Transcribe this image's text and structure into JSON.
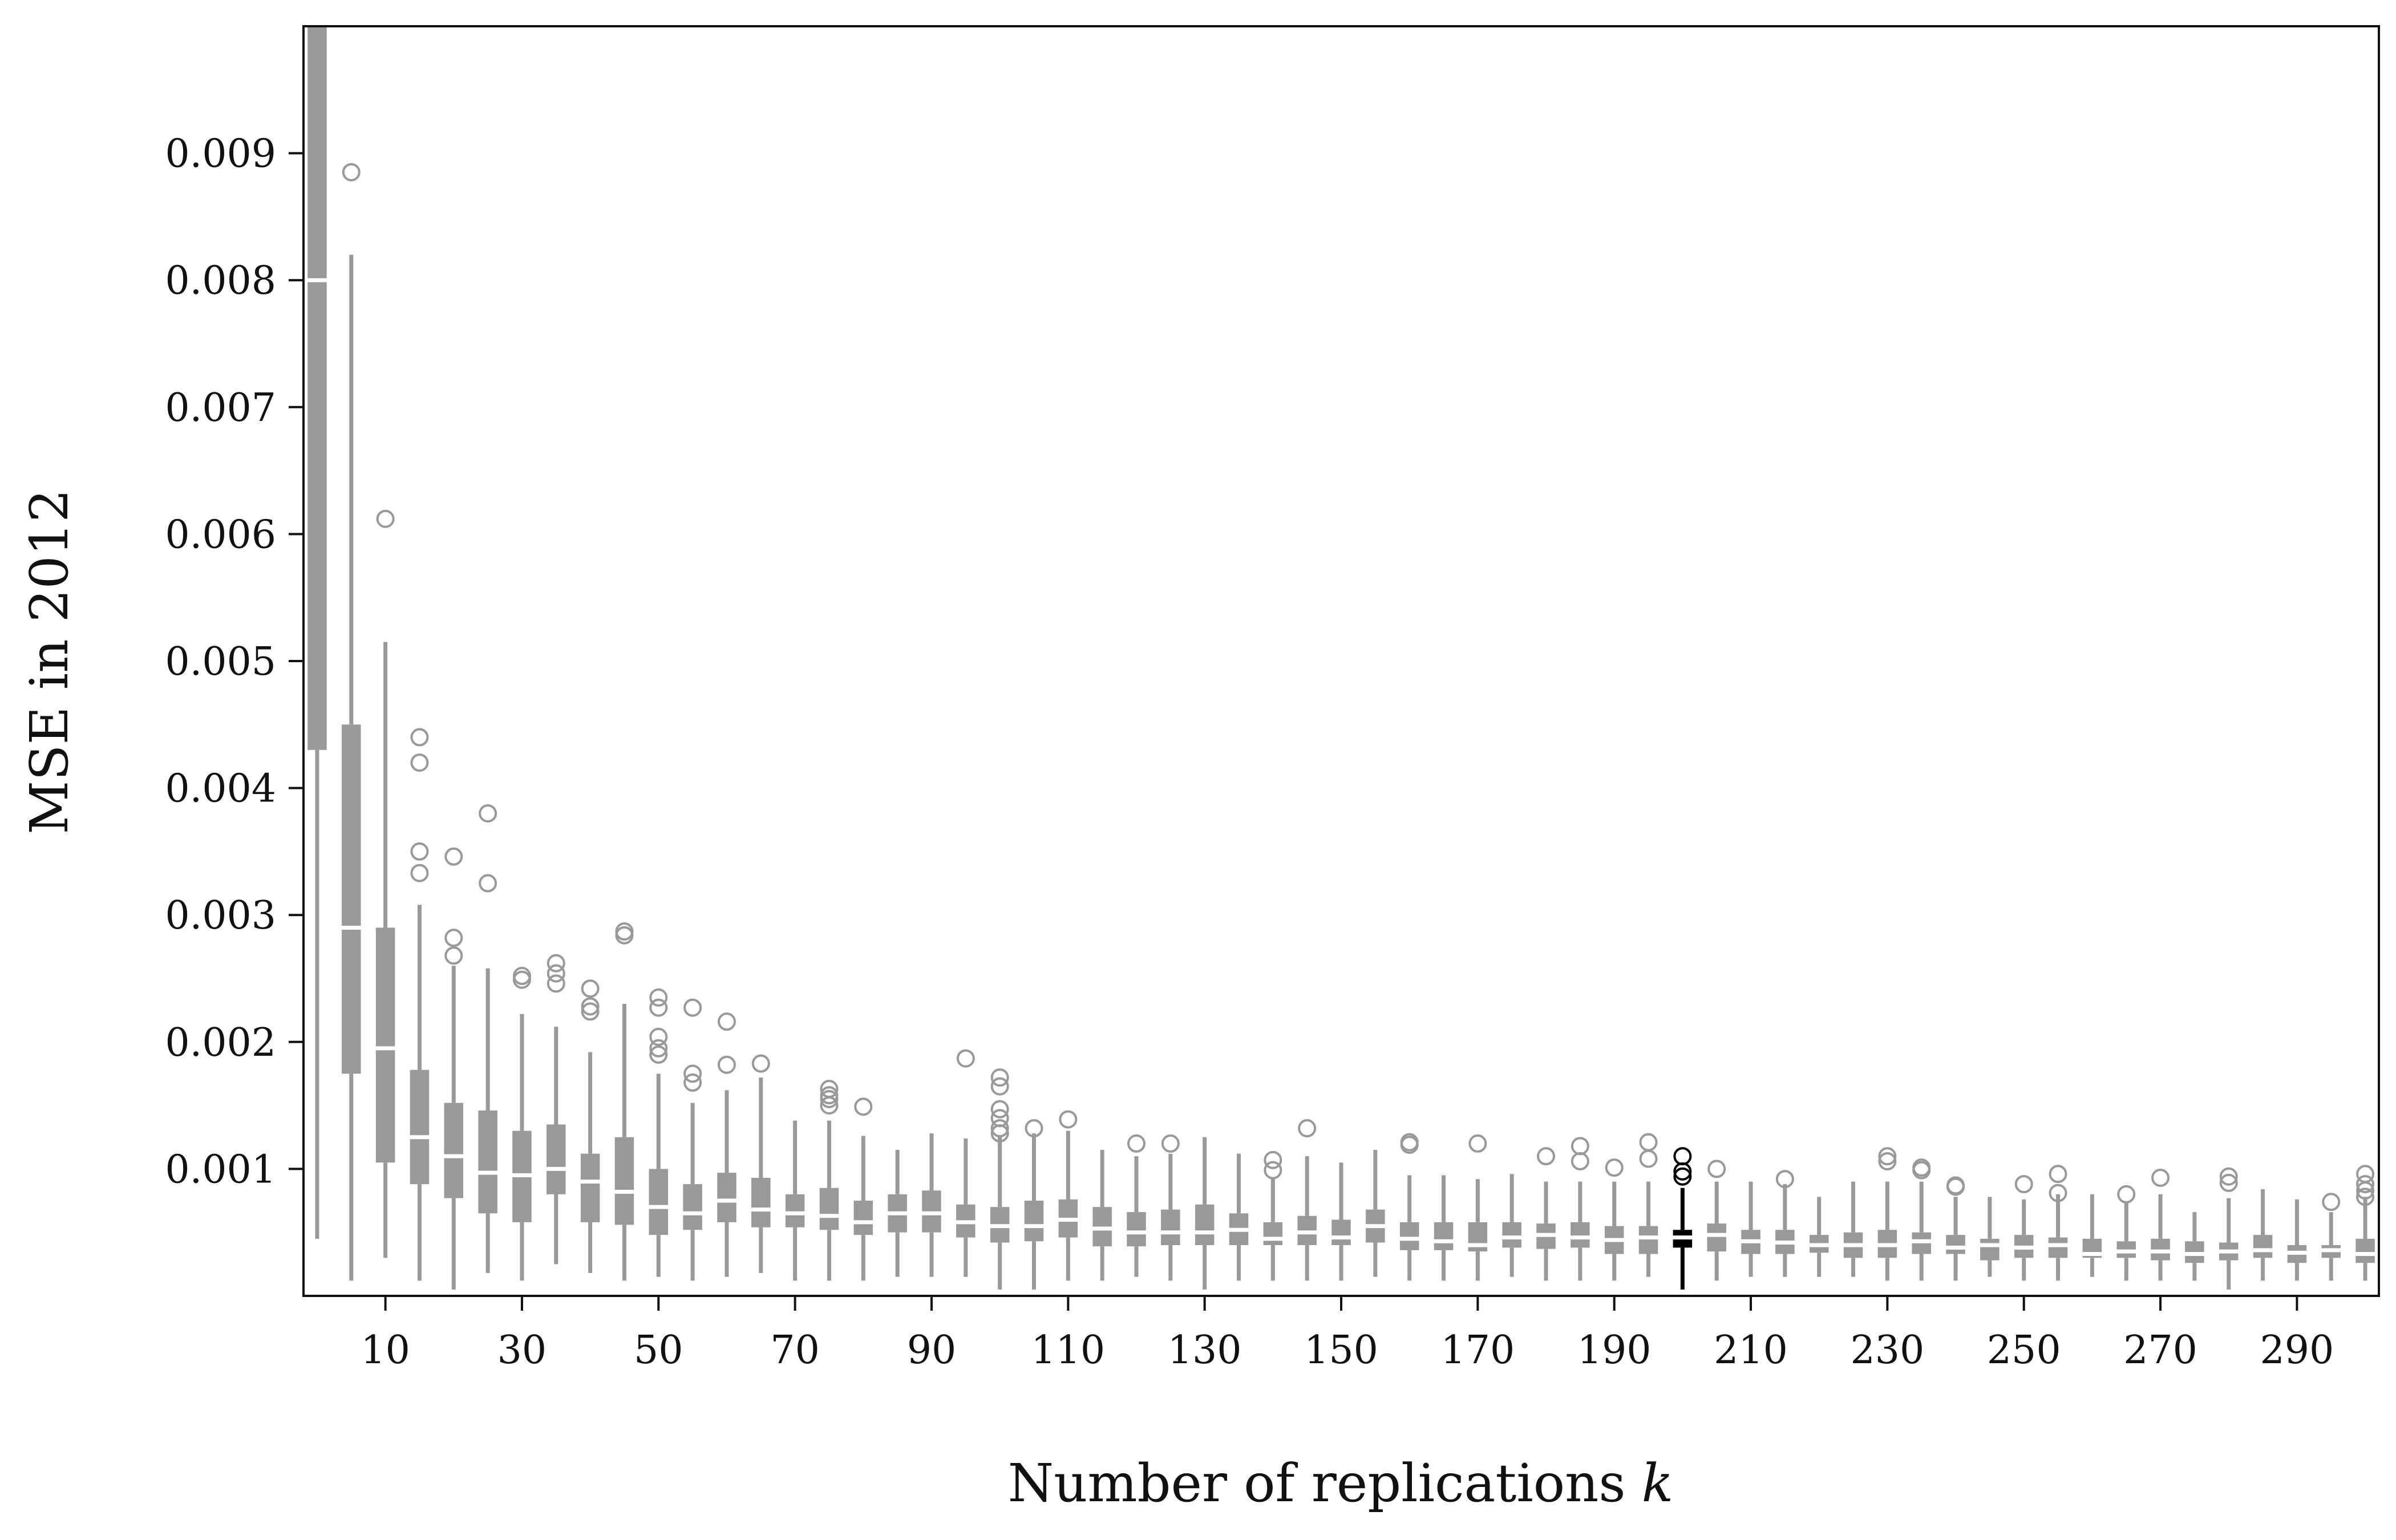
{
  "chart_data": {
    "type": "box",
    "xlabel": "Number of replications",
    "xlabel_var": "k",
    "ylabel": "MSE in 2012",
    "xlim": [
      -2,
      302
    ],
    "ylim": [
      0.0,
      0.01
    ],
    "x_ticks": [
      10,
      30,
      50,
      70,
      90,
      110,
      130,
      150,
      170,
      190,
      210,
      230,
      250,
      270,
      290
    ],
    "x_tick_labels": [
      "10",
      "30",
      "50",
      "70",
      "90",
      "110",
      "130",
      "150",
      "170",
      "190",
      "210",
      "230",
      "250",
      "270",
      "290"
    ],
    "y_ticks": [
      0.001,
      0.002,
      0.003,
      0.004,
      0.005,
      0.006,
      0.007,
      0.008,
      0.009
    ],
    "y_tick_labels": [
      "0.001",
      "0.002",
      "0.003",
      "0.004",
      "0.005",
      "0.006",
      "0.007",
      "0.008",
      "0.009"
    ],
    "grid": false,
    "colors": {
      "box": "#999999",
      "highlight": "#000000",
      "median_gap": "#ffffff",
      "outlier": "#999999",
      "axis": "#111111"
    },
    "highlight_k": 200,
    "boxes": [
      {
        "k": 0,
        "low": 0.00045,
        "q1": 0.0043,
        "median": 0.008,
        "q3": 0.0105,
        "high": 0.0105,
        "outliers": []
      },
      {
        "k": 5,
        "low": 0.00012,
        "q1": 0.00175,
        "median": 0.0029,
        "q3": 0.0045,
        "high": 0.0082,
        "outliers": [
          0.00885
        ]
      },
      {
        "k": 10,
        "low": 0.0003,
        "q1": 0.00105,
        "median": 0.00195,
        "q3": 0.0029,
        "high": 0.00515,
        "outliers": [
          0.00612
        ]
      },
      {
        "k": 15,
        "low": 0.00012,
        "q1": 0.00088,
        "median": 0.00125,
        "q3": 0.00178,
        "high": 0.00308,
        "outliers": [
          0.0044,
          0.0042,
          0.0035,
          0.00333
        ]
      },
      {
        "k": 20,
        "low": 5e-05,
        "q1": 0.00077,
        "median": 0.0011,
        "q3": 0.00152,
        "high": 0.0026,
        "outliers": [
          0.00346,
          0.00282,
          0.00268
        ]
      },
      {
        "k": 25,
        "low": 0.00018,
        "q1": 0.00065,
        "median": 0.00097,
        "q3": 0.00146,
        "high": 0.00258,
        "outliers": [
          0.0038,
          0.00325
        ]
      },
      {
        "k": 30,
        "low": 0.00012,
        "q1": 0.00058,
        "median": 0.00095,
        "q3": 0.0013,
        "high": 0.00222,
        "outliers": [
          0.00252,
          0.00249
        ]
      },
      {
        "k": 35,
        "low": 0.00025,
        "q1": 0.0008,
        "median": 0.001,
        "q3": 0.00135,
        "high": 0.00212,
        "outliers": [
          0.00262,
          0.00254,
          0.00246
        ]
      },
      {
        "k": 40,
        "low": 0.00018,
        "q1": 0.00058,
        "median": 0.0009,
        "q3": 0.00112,
        "high": 0.00192,
        "outliers": [
          0.00242,
          0.00228,
          0.00224
        ]
      },
      {
        "k": 45,
        "low": 0.00012,
        "q1": 0.00056,
        "median": 0.00082,
        "q3": 0.00125,
        "high": 0.0023,
        "outliers": [
          0.00287,
          0.00284
        ]
      },
      {
        "k": 50,
        "low": 0.00015,
        "q1": 0.00048,
        "median": 0.0007,
        "q3": 0.001,
        "high": 0.00175,
        "outliers": [
          0.00235,
          0.00227,
          0.00204,
          0.00195,
          0.0019
        ]
      },
      {
        "k": 55,
        "low": 0.00012,
        "q1": 0.00052,
        "median": 0.00065,
        "q3": 0.00088,
        "high": 0.00152,
        "outliers": [
          0.00227,
          0.00175,
          0.00168
        ]
      },
      {
        "k": 60,
        "low": 0.00015,
        "q1": 0.00058,
        "median": 0.00075,
        "q3": 0.00097,
        "high": 0.00162,
        "outliers": [
          0.00216,
          0.00182
        ]
      },
      {
        "k": 65,
        "low": 0.00018,
        "q1": 0.00054,
        "median": 0.00068,
        "q3": 0.00093,
        "high": 0.00172,
        "outliers": [
          0.00183
        ]
      },
      {
        "k": 70,
        "low": 0.00012,
        "q1": 0.00054,
        "median": 0.00065,
        "q3": 0.0008,
        "high": 0.00138,
        "outliers": []
      },
      {
        "k": 75,
        "low": 0.00012,
        "q1": 0.00052,
        "median": 0.00063,
        "q3": 0.00085,
        "high": 0.00138,
        "outliers": [
          0.00163,
          0.00158,
          0.00155,
          0.0015
        ]
      },
      {
        "k": 80,
        "low": 0.00012,
        "q1": 0.00048,
        "median": 0.00058,
        "q3": 0.00075,
        "high": 0.00126,
        "outliers": [
          0.00149
        ]
      },
      {
        "k": 85,
        "low": 0.00015,
        "q1": 0.0005,
        "median": 0.00065,
        "q3": 0.0008,
        "high": 0.00115,
        "outliers": []
      },
      {
        "k": 90,
        "low": 0.00015,
        "q1": 0.0005,
        "median": 0.00065,
        "q3": 0.00083,
        "high": 0.00128,
        "outliers": []
      },
      {
        "k": 95,
        "low": 0.00015,
        "q1": 0.00046,
        "median": 0.00058,
        "q3": 0.00072,
        "high": 0.00124,
        "outliers": [
          0.00187
        ]
      },
      {
        "k": 100,
        "low": 5e-05,
        "q1": 0.00042,
        "median": 0.00055,
        "q3": 0.0007,
        "high": 0.00125,
        "outliers": [
          0.00172,
          0.00165,
          0.00147,
          0.0014,
          0.00132,
          0.00128
        ]
      },
      {
        "k": 105,
        "low": 5e-05,
        "q1": 0.00043,
        "median": 0.00055,
        "q3": 0.00075,
        "high": 0.00128,
        "outliers": [
          0.00132
        ]
      },
      {
        "k": 110,
        "low": 0.00012,
        "q1": 0.00046,
        "median": 0.0006,
        "q3": 0.00076,
        "high": 0.0013,
        "outliers": [
          0.00139
        ]
      },
      {
        "k": 115,
        "low": 0.00012,
        "q1": 0.00039,
        "median": 0.00053,
        "q3": 0.0007,
        "high": 0.00115,
        "outliers": []
      },
      {
        "k": 120,
        "low": 0.00015,
        "q1": 0.00039,
        "median": 0.0005,
        "q3": 0.00066,
        "high": 0.0011,
        "outliers": [
          0.0012
        ]
      },
      {
        "k": 125,
        "low": 0.00012,
        "q1": 0.0004,
        "median": 0.0005,
        "q3": 0.00068,
        "high": 0.00112,
        "outliers": [
          0.0012
        ]
      },
      {
        "k": 130,
        "low": 5e-05,
        "q1": 0.0004,
        "median": 0.0005,
        "q3": 0.00072,
        "high": 0.00125,
        "outliers": []
      },
      {
        "k": 135,
        "low": 0.00012,
        "q1": 0.0004,
        "median": 0.00052,
        "q3": 0.00065,
        "high": 0.00112,
        "outliers": []
      },
      {
        "k": 140,
        "low": 0.00012,
        "q1": 0.0004,
        "median": 0.00045,
        "q3": 0.00058,
        "high": 0.00092,
        "outliers": [
          0.00107,
          0.00099
        ]
      },
      {
        "k": 145,
        "low": 0.00012,
        "q1": 0.0004,
        "median": 0.0005,
        "q3": 0.00063,
        "high": 0.0011,
        "outliers": [
          0.00132
        ]
      },
      {
        "k": 150,
        "low": 0.00012,
        "q1": 0.0004,
        "median": 0.00046,
        "q3": 0.0006,
        "high": 0.00105,
        "outliers": []
      },
      {
        "k": 155,
        "low": 0.00015,
        "q1": 0.00042,
        "median": 0.00055,
        "q3": 0.00068,
        "high": 0.00115,
        "outliers": []
      },
      {
        "k": 160,
        "low": 0.00012,
        "q1": 0.00036,
        "median": 0.00045,
        "q3": 0.00058,
        "high": 0.00095,
        "outliers": [
          0.00121,
          0.00119
        ]
      },
      {
        "k": 165,
        "low": 0.00012,
        "q1": 0.00036,
        "median": 0.00043,
        "q3": 0.00058,
        "high": 0.00095,
        "outliers": []
      },
      {
        "k": 170,
        "low": 0.00012,
        "q1": 0.00035,
        "median": 0.0004,
        "q3": 0.00058,
        "high": 0.00092,
        "outliers": [
          0.0012
        ]
      },
      {
        "k": 175,
        "low": 0.00015,
        "q1": 0.00038,
        "median": 0.00046,
        "q3": 0.00058,
        "high": 0.00096,
        "outliers": []
      },
      {
        "k": 180,
        "low": 0.00012,
        "q1": 0.00037,
        "median": 0.00048,
        "q3": 0.00057,
        "high": 0.0009,
        "outliers": [
          0.0011
        ]
      },
      {
        "k": 185,
        "low": 0.00012,
        "q1": 0.00038,
        "median": 0.00046,
        "q3": 0.00058,
        "high": 0.0009,
        "outliers": [
          0.00118,
          0.00106
        ]
      },
      {
        "k": 190,
        "low": 0.00012,
        "q1": 0.00033,
        "median": 0.00044,
        "q3": 0.00055,
        "high": 0.0009,
        "outliers": [
          0.00101
        ]
      },
      {
        "k": 195,
        "low": 0.00015,
        "q1": 0.00033,
        "median": 0.00046,
        "q3": 0.00055,
        "high": 0.0009,
        "outliers": [
          0.00121,
          0.00108
        ]
      },
      {
        "k": 200,
        "low": 5e-05,
        "q1": 0.00038,
        "median": 0.00046,
        "q3": 0.00052,
        "high": 0.00085,
        "outliers": [
          0.0011,
          0.00098,
          0.00094
        ]
      },
      {
        "k": 205,
        "low": 0.00012,
        "q1": 0.00035,
        "median": 0.00048,
        "q3": 0.00057,
        "high": 0.0009,
        "outliers": [
          0.001
        ]
      },
      {
        "k": 210,
        "low": 0.00015,
        "q1": 0.00033,
        "median": 0.00043,
        "q3": 0.00052,
        "high": 0.0009,
        "outliers": []
      },
      {
        "k": 215,
        "low": 0.00015,
        "q1": 0.00033,
        "median": 0.00042,
        "q3": 0.00052,
        "high": 0.00088,
        "outliers": [
          0.00092
        ]
      },
      {
        "k": 220,
        "low": 0.00015,
        "q1": 0.00034,
        "median": 0.0004,
        "q3": 0.00048,
        "high": 0.00078,
        "outliers": []
      },
      {
        "k": 225,
        "low": 0.00015,
        "q1": 0.0003,
        "median": 0.0004,
        "q3": 0.0005,
        "high": 0.0009,
        "outliers": []
      },
      {
        "k": 230,
        "low": 0.00012,
        "q1": 0.0003,
        "median": 0.0004,
        "q3": 0.00052,
        "high": 0.0009,
        "outliers": [
          0.0011,
          0.00106
        ]
      },
      {
        "k": 235,
        "low": 0.00012,
        "q1": 0.00033,
        "median": 0.00043,
        "q3": 0.0005,
        "high": 0.0009,
        "outliers": [
          0.00101,
          0.00099
        ]
      },
      {
        "k": 240,
        "low": 0.00012,
        "q1": 0.00033,
        "median": 0.00038,
        "q3": 0.00048,
        "high": 0.00078,
        "outliers": [
          0.00087,
          0.00086
        ]
      },
      {
        "k": 245,
        "low": 0.00015,
        "q1": 0.00028,
        "median": 0.0004,
        "q3": 0.00045,
        "high": 0.00078,
        "outliers": []
      },
      {
        "k": 250,
        "low": 0.00012,
        "q1": 0.0003,
        "median": 0.00038,
        "q3": 0.00048,
        "high": 0.00076,
        "outliers": [
          0.00088
        ]
      },
      {
        "k": 255,
        "low": 0.00012,
        "q1": 0.0003,
        "median": 0.0004,
        "q3": 0.00046,
        "high": 0.0008,
        "outliers": [
          0.00096,
          0.00081
        ]
      },
      {
        "k": 260,
        "low": 0.00015,
        "q1": 0.0003,
        "median": 0.00033,
        "q3": 0.00045,
        "high": 0.0008,
        "outliers": []
      },
      {
        "k": 265,
        "low": 0.00012,
        "q1": 0.0003,
        "median": 0.00035,
        "q3": 0.00043,
        "high": 0.00074,
        "outliers": [
          0.0008
        ]
      },
      {
        "k": 270,
        "low": 0.00012,
        "q1": 0.00028,
        "median": 0.00035,
        "q3": 0.00045,
        "high": 0.0008,
        "outliers": [
          0.00093
        ]
      },
      {
        "k": 275,
        "low": 0.00012,
        "q1": 0.00026,
        "median": 0.00033,
        "q3": 0.00043,
        "high": 0.00066,
        "outliers": []
      },
      {
        "k": 280,
        "low": 5e-05,
        "q1": 0.00028,
        "median": 0.00035,
        "q3": 0.00042,
        "high": 0.00077,
        "outliers": [
          0.00094,
          0.00089
        ]
      },
      {
        "k": 285,
        "low": 0.00012,
        "q1": 0.0003,
        "median": 0.00036,
        "q3": 0.00048,
        "high": 0.00084,
        "outliers": []
      },
      {
        "k": 290,
        "low": 0.00012,
        "q1": 0.00026,
        "median": 0.00034,
        "q3": 0.0004,
        "high": 0.00076,
        "outliers": []
      },
      {
        "k": 295,
        "low": 0.00012,
        "q1": 0.0003,
        "median": 0.00036,
        "q3": 0.0004,
        "high": 0.00066,
        "outliers": [
          0.00074
        ]
      },
      {
        "k": 300,
        "low": 0.00012,
        "q1": 0.00026,
        "median": 0.00033,
        "q3": 0.00045,
        "high": 0.00078,
        "outliers": [
          0.00096,
          0.00088,
          0.00083,
          0.00078
        ]
      }
    ]
  }
}
